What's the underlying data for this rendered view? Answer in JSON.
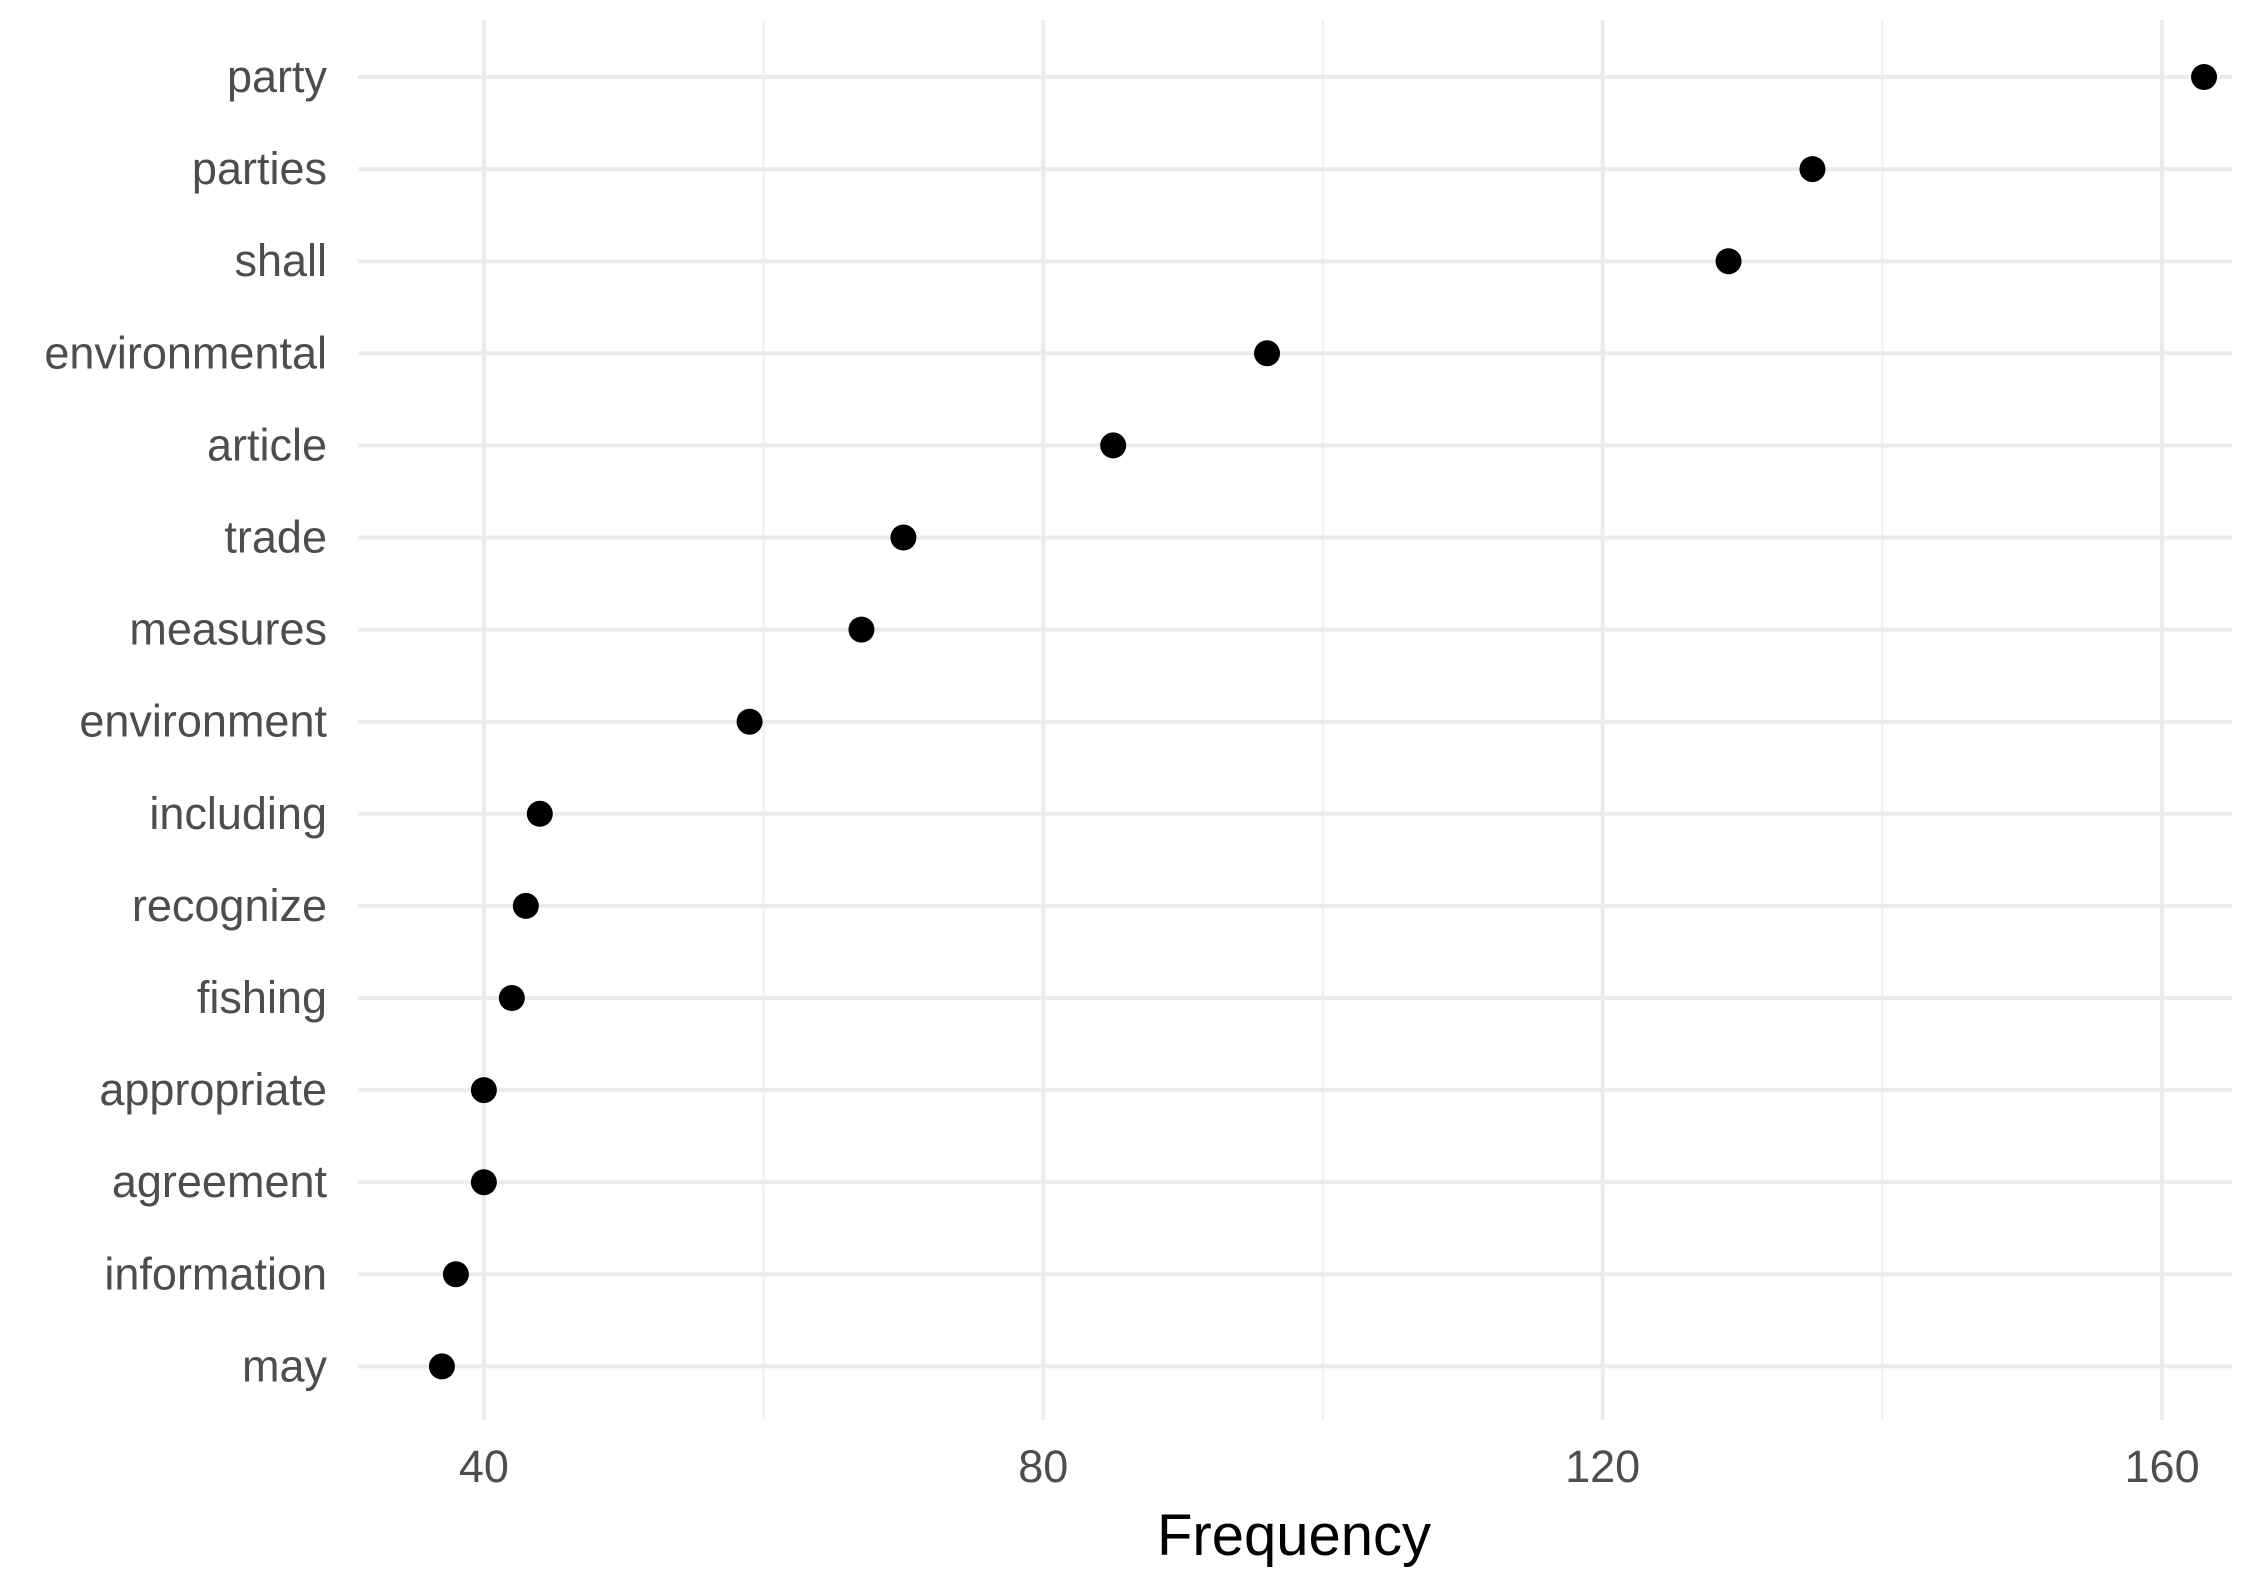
{
  "chart_data": {
    "type": "scatter",
    "title": "",
    "xlabel": "Frequency",
    "ylabel": "",
    "xlim": [
      31,
      165
    ],
    "xticks": [
      40,
      80,
      120,
      160
    ],
    "x_tick_labels": [
      "40",
      "80",
      "120",
      "160"
    ],
    "grid": true,
    "theme": "minimal",
    "point_color": "#000000",
    "categories": [
      "party",
      "parties",
      "shall",
      "environmental",
      "article",
      "trade",
      "measures",
      "environment",
      "including",
      "recognize",
      "fishing",
      "appropriate",
      "agreement",
      "information",
      "may"
    ],
    "values": [
      163,
      135,
      129,
      96,
      85,
      70,
      67,
      59,
      44,
      43,
      42,
      40,
      40,
      38,
      37
    ]
  }
}
